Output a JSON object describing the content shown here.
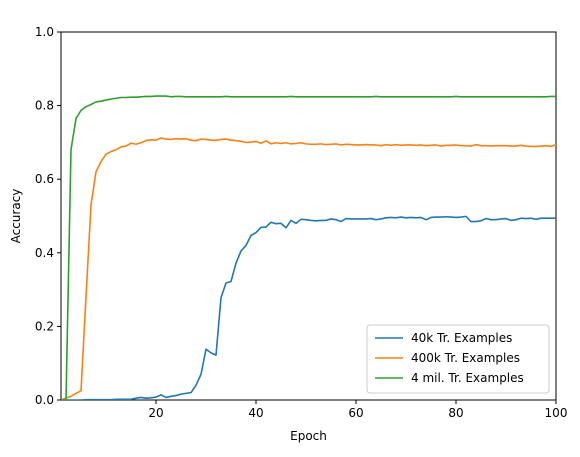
{
  "chart_data": {
    "type": "line",
    "title": "",
    "xlabel": "Epoch",
    "ylabel": "Accuracy",
    "xlim": [
      1,
      100
    ],
    "ylim": [
      0.0,
      1.0
    ],
    "xticks": [
      20,
      40,
      60,
      80,
      100
    ],
    "yticks": [
      0.0,
      0.2,
      0.4,
      0.6,
      0.8,
      1.0
    ],
    "ytick_labels": [
      "0.0",
      "0.2",
      "0.4",
      "0.6",
      "0.8",
      "1.0"
    ],
    "grid": false,
    "legend_position": "lower-right",
    "series": [
      {
        "name": "40k Tr. Examples",
        "color": "#1f77b4",
        "x": [
          1,
          2,
          3,
          4,
          5,
          6,
          7,
          8,
          9,
          10,
          11,
          12,
          13,
          14,
          15,
          16,
          17,
          18,
          19,
          20,
          21,
          22,
          23,
          24,
          25,
          26,
          27,
          28,
          29,
          30,
          31,
          32,
          33,
          34,
          35,
          36,
          37,
          38,
          39,
          40,
          41,
          42,
          43,
          44,
          45,
          46,
          47,
          48,
          49,
          50,
          51,
          52,
          53,
          54,
          55,
          56,
          57,
          58,
          59,
          60,
          61,
          62,
          63,
          64,
          65,
          66,
          67,
          68,
          69,
          70,
          71,
          72,
          73,
          74,
          75,
          76,
          77,
          78,
          79,
          80,
          81,
          82,
          83,
          84,
          85,
          86,
          87,
          88,
          89,
          90,
          91,
          92,
          93,
          94,
          95,
          96,
          97,
          98,
          99,
          100
        ],
        "y": [
          0.0,
          0.0,
          0.0,
          0.0,
          0.0,
          0.001,
          0.001,
          0.001,
          0.001,
          0.001,
          0.001,
          0.002,
          0.002,
          0.002,
          0.002,
          0.005,
          0.007,
          0.005,
          0.006,
          0.008,
          0.014,
          0.007,
          0.01,
          0.012,
          0.016,
          0.018,
          0.02,
          0.04,
          0.07,
          0.138,
          0.128,
          0.122,
          0.278,
          0.318,
          0.322,
          0.372,
          0.405,
          0.42,
          0.447,
          0.455,
          0.469,
          0.47,
          0.483,
          0.479,
          0.48,
          0.468,
          0.488,
          0.48,
          0.491,
          0.49,
          0.488,
          0.487,
          0.488,
          0.488,
          0.492,
          0.49,
          0.485,
          0.493,
          0.492,
          0.492,
          0.492,
          0.492,
          0.493,
          0.49,
          0.492,
          0.495,
          0.496,
          0.495,
          0.497,
          0.495,
          0.496,
          0.495,
          0.496,
          0.49,
          0.496,
          0.497,
          0.497,
          0.498,
          0.497,
          0.496,
          0.497,
          0.499,
          0.485,
          0.485,
          0.487,
          0.493,
          0.49,
          0.49,
          0.492,
          0.493,
          0.488,
          0.49,
          0.494,
          0.493,
          0.494,
          0.491,
          0.494,
          0.494,
          0.494,
          0.494
        ]
      },
      {
        "name": "400k Tr. Examples",
        "color": "#ff7f0e",
        "x": [
          1,
          2,
          3,
          4,
          5,
          6,
          7,
          8,
          9,
          10,
          11,
          12,
          13,
          14,
          15,
          16,
          17,
          18,
          19,
          20,
          21,
          22,
          23,
          24,
          25,
          26,
          27,
          28,
          29,
          30,
          31,
          32,
          33,
          34,
          35,
          36,
          37,
          38,
          39,
          40,
          41,
          42,
          43,
          44,
          45,
          46,
          47,
          48,
          49,
          50,
          51,
          52,
          53,
          54,
          55,
          56,
          57,
          58,
          59,
          60,
          61,
          62,
          63,
          64,
          65,
          66,
          67,
          68,
          69,
          70,
          71,
          72,
          73,
          74,
          75,
          76,
          77,
          78,
          79,
          80,
          81,
          82,
          83,
          84,
          85,
          86,
          87,
          88,
          89,
          90,
          91,
          92,
          93,
          94,
          95,
          96,
          97,
          98,
          99,
          100
        ],
        "y": [
          0.0,
          0.005,
          0.01,
          0.018,
          0.025,
          0.28,
          0.53,
          0.62,
          0.648,
          0.668,
          0.675,
          0.68,
          0.688,
          0.69,
          0.698,
          0.695,
          0.699,
          0.705,
          0.707,
          0.706,
          0.712,
          0.709,
          0.708,
          0.71,
          0.709,
          0.71,
          0.706,
          0.705,
          0.709,
          0.708,
          0.706,
          0.706,
          0.708,
          0.709,
          0.706,
          0.705,
          0.703,
          0.7,
          0.701,
          0.702,
          0.698,
          0.704,
          0.696,
          0.699,
          0.697,
          0.699,
          0.696,
          0.697,
          0.699,
          0.696,
          0.695,
          0.695,
          0.696,
          0.694,
          0.695,
          0.696,
          0.693,
          0.695,
          0.694,
          0.693,
          0.693,
          0.694,
          0.693,
          0.693,
          0.691,
          0.694,
          0.692,
          0.694,
          0.692,
          0.693,
          0.693,
          0.692,
          0.693,
          0.691,
          0.692,
          0.693,
          0.69,
          0.692,
          0.692,
          0.693,
          0.691,
          0.691,
          0.69,
          0.694,
          0.691,
          0.691,
          0.69,
          0.691,
          0.691,
          0.691,
          0.69,
          0.69,
          0.692,
          0.69,
          0.689,
          0.689,
          0.69,
          0.691,
          0.689,
          0.694
        ]
      },
      {
        "name": "4 mil. Tr. Examples",
        "color": "#2ca02c",
        "x": [
          1,
          2,
          3,
          4,
          5,
          6,
          7,
          8,
          9,
          10,
          11,
          12,
          13,
          14,
          15,
          16,
          17,
          18,
          19,
          20,
          21,
          22,
          23,
          24,
          25,
          26,
          27,
          28,
          29,
          30,
          31,
          32,
          33,
          34,
          35,
          36,
          37,
          38,
          39,
          40,
          41,
          42,
          43,
          44,
          45,
          46,
          47,
          48,
          49,
          50,
          51,
          52,
          53,
          54,
          55,
          56,
          57,
          58,
          59,
          60,
          61,
          62,
          63,
          64,
          65,
          66,
          67,
          68,
          69,
          70,
          71,
          72,
          73,
          74,
          75,
          76,
          77,
          78,
          79,
          80,
          81,
          82,
          83,
          84,
          85,
          86,
          87,
          88,
          89,
          90,
          91,
          92,
          93,
          94,
          95,
          96,
          97,
          98,
          99,
          100
        ],
        "y": [
          0.0,
          0.0,
          0.68,
          0.765,
          0.787,
          0.797,
          0.803,
          0.81,
          0.812,
          0.815,
          0.818,
          0.82,
          0.822,
          0.822,
          0.823,
          0.823,
          0.824,
          0.825,
          0.825,
          0.826,
          0.826,
          0.826,
          0.824,
          0.825,
          0.825,
          0.824,
          0.824,
          0.824,
          0.824,
          0.824,
          0.824,
          0.824,
          0.824,
          0.825,
          0.824,
          0.824,
          0.824,
          0.824,
          0.824,
          0.824,
          0.824,
          0.824,
          0.824,
          0.824,
          0.824,
          0.824,
          0.825,
          0.824,
          0.824,
          0.824,
          0.824,
          0.824,
          0.824,
          0.824,
          0.824,
          0.824,
          0.824,
          0.824,
          0.824,
          0.824,
          0.824,
          0.824,
          0.824,
          0.825,
          0.824,
          0.824,
          0.824,
          0.824,
          0.824,
          0.824,
          0.824,
          0.824,
          0.824,
          0.824,
          0.824,
          0.824,
          0.824,
          0.824,
          0.824,
          0.825,
          0.824,
          0.824,
          0.824,
          0.824,
          0.824,
          0.824,
          0.824,
          0.824,
          0.824,
          0.824,
          0.824,
          0.824,
          0.824,
          0.824,
          0.824,
          0.824,
          0.824,
          0.824,
          0.825,
          0.825
        ]
      }
    ]
  }
}
